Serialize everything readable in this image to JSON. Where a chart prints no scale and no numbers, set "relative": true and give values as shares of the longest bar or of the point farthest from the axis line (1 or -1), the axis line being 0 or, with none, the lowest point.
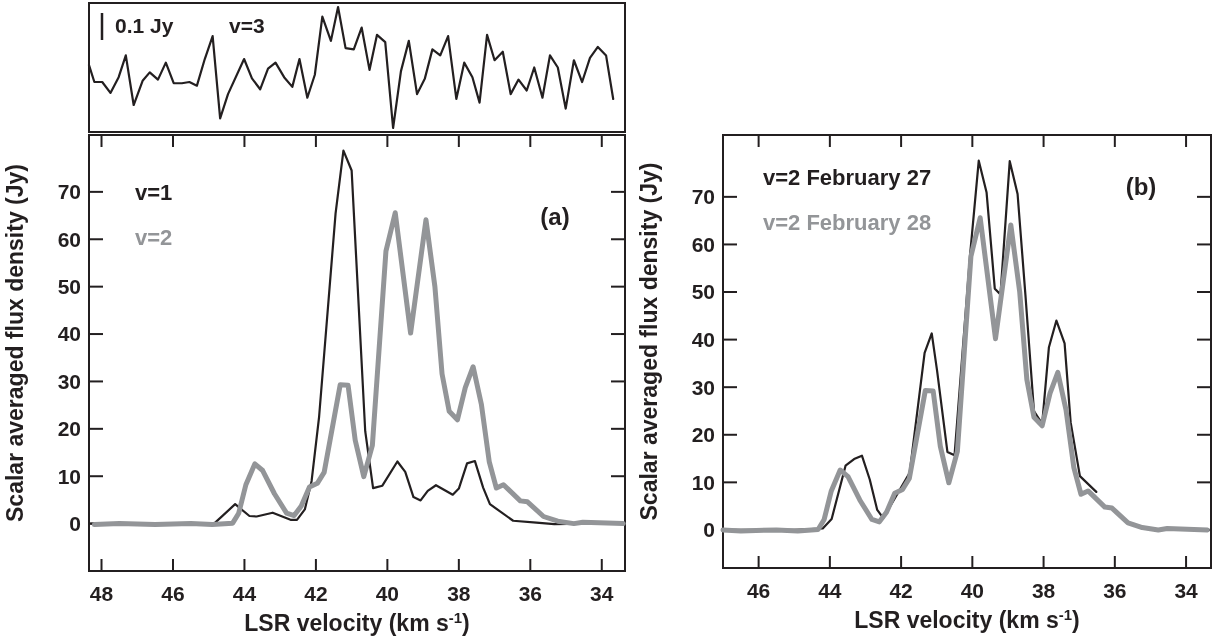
{
  "chart_data": [
    {
      "type": "line",
      "relative": true,
      "xlim": [
        48.35,
        33.35
      ],
      "tick_labels": false,
      "legend": "top left",
      "annotations": [
        "0.1 Jy"
      ],
      "series": [
        {
          "name": "v=3",
          "color": "#231f20",
          "x": [
            48.35,
            48.2,
            47.98,
            47.75,
            47.52,
            47.32,
            47.1,
            46.85,
            46.65,
            46.42,
            46.2,
            45.98,
            45.75,
            45.54,
            45.33,
            45.11,
            44.89,
            44.68,
            44.46,
            44.01,
            43.79,
            43.56,
            43.34,
            43.13,
            42.89,
            42.66,
            42.46,
            42.24,
            42.03,
            41.82,
            41.58,
            41.38,
            41.17,
            40.94,
            40.72,
            40.5,
            40.29,
            40.06,
            39.84,
            39.62,
            39.4,
            39.17,
            38.95,
            38.74,
            38.52,
            38.3,
            38.07,
            37.85,
            37.62,
            37.42,
            37.21,
            37.0,
            36.77,
            36.55,
            36.33,
            36.1,
            35.89,
            35.66,
            35.45,
            35.23,
            35.01,
            34.78,
            34.55,
            34.33,
            34.11,
            33.88,
            33.68
          ],
          "values": [
            0.52,
            0.38,
            0.38,
            0.29,
            0.42,
            0.6,
            0.19,
            0.39,
            0.46,
            0.4,
            0.54,
            0.37,
            0.37,
            0.38,
            0.35,
            0.57,
            0.76,
            0.08,
            0.28,
            0.57,
            0.41,
            0.32,
            0.49,
            0.54,
            0.42,
            0.34,
            0.57,
            0.25,
            0.44,
            0.92,
            0.72,
            1.0,
            0.66,
            0.65,
            0.83,
            0.48,
            0.77,
            0.71,
            0,
            0.47,
            0.72,
            0.28,
            0.41,
            0.65,
            0.6,
            0.76,
            0.24,
            0.54,
            0.42,
            0.21,
            0.77,
            0.56,
            0.63,
            0.28,
            0.4,
            0.31,
            0.5,
            0.25,
            0.6,
            0.5,
            0.16,
            0.56,
            0.38,
            0.58,
            0.67,
            0.6,
            0.24
          ]
        }
      ]
    },
    {
      "type": "line",
      "xlim": [
        48.35,
        33.35
      ],
      "ylim": [
        -10,
        82
      ],
      "xticks": [
        48,
        46,
        44,
        42,
        40,
        38,
        36,
        34
      ],
      "yticks": [
        0,
        10,
        20,
        30,
        40,
        50,
        60,
        70
      ],
      "xlabel": "LSR velocity (km s$^{-1}$)",
      "ylabel": "Scalar averaged flux density (Jy)",
      "legend": "top left",
      "annotations": [
        "(a)"
      ],
      "series": [
        {
          "name": "v=1",
          "color": "#231f20",
          "x": [
            48.3,
            46.5,
            44.85,
            44.26,
            43.86,
            43.66,
            43.21,
            42.71,
            42.53,
            42.31,
            42.12,
            41.91,
            41.45,
            41.23,
            41.0,
            40.62,
            40.4,
            40.14,
            39.72,
            39.5,
            39.27,
            39.07,
            38.87,
            38.64,
            38.17,
            38.0,
            37.77,
            37.55,
            37.32,
            37.13,
            36.48,
            35.83,
            35.33,
            34.5,
            33.4
          ],
          "values": [
            0,
            0,
            0,
            4.1,
            1.6,
            1.5,
            2.3,
            0.8,
            0.8,
            3.0,
            9.0,
            22.6,
            65.4,
            78.7,
            74.5,
            19.5,
            7.5,
            8.0,
            13.1,
            10.9,
            5.6,
            4.9,
            6.9,
            8.1,
            6.1,
            7.4,
            12.7,
            13.2,
            7.6,
            4.1,
            0.6,
            0.2,
            -0.1,
            0,
            0
          ]
        },
        {
          "name": "v=2",
          "color": "#939598",
          "x": [
            48.2,
            47.5,
            46.5,
            45.5,
            44.9,
            44.33,
            44.16,
            43.96,
            43.71,
            43.49,
            43.16,
            42.82,
            42.61,
            42.41,
            42.18,
            41.96,
            41.77,
            41.32,
            41.1,
            40.9,
            40.66,
            40.42,
            40.04,
            39.78,
            39.35,
            38.92,
            38.67,
            38.47,
            38.27,
            38.04,
            37.82,
            37.6,
            37.37,
            37.15,
            36.95,
            36.75,
            36.28,
            36.08,
            35.63,
            35.23,
            34.78,
            34.53,
            33.4
          ],
          "values": [
            -0.2,
            0,
            -0.2,
            0,
            -0.2,
            0.1,
            2.2,
            8.2,
            12.6,
            11.2,
            6.3,
            2.2,
            1.7,
            3.7,
            7.7,
            8.5,
            10.8,
            29.3,
            29.2,
            17.6,
            9.9,
            16.5,
            57.5,
            65.6,
            40.2,
            64.1,
            50,
            31.6,
            23.7,
            21.9,
            28.7,
            33.1,
            25.2,
            13.1,
            7.5,
            8.2,
            4.8,
            4.6,
            1.5,
            0.5,
            0,
            0.3,
            0
          ]
        }
      ]
    },
    {
      "type": "line",
      "xlim": [
        47.0,
        33.3
      ],
      "ylim": [
        -8,
        83
      ],
      "xticks": [
        46,
        44,
        42,
        40,
        38,
        36,
        34
      ],
      "yticks": [
        0,
        10,
        20,
        30,
        40,
        50,
        60,
        70
      ],
      "xlabel": "LSR velocity (km s$^{-1}$)",
      "ylabel": "Scalar averaged flux density (Jy)",
      "legend": "top left",
      "annotations": [
        "(b)"
      ],
      "series": [
        {
          "name": "v=2 February 27",
          "color": "#231f20",
          "x": [
            47.0,
            46.0,
            45.0,
            44.2,
            43.95,
            43.56,
            43.32,
            43.1,
            42.88,
            42.67,
            42.5,
            41.76,
            41.34,
            41.14,
            40.99,
            40.7,
            40.5,
            40.06,
            39.82,
            39.6,
            39.37,
            39.21,
            38.95,
            38.73,
            38.51,
            38.27,
            38.04,
            37.85,
            37.64,
            37.41,
            37.24,
            36.98,
            36.52
          ],
          "values": [
            0,
            0,
            0,
            0.3,
            2.3,
            13.5,
            14.9,
            15.6,
            10.6,
            4.2,
            2.5,
            12.0,
            37.2,
            41.3,
            33.5,
            16.4,
            15.7,
            58.1,
            77.6,
            70.9,
            50.7,
            49.5,
            77.5,
            70.6,
            49.4,
            25.0,
            22.3,
            38.4,
            44.0,
            39.2,
            22.6,
            11.3,
            8.0
          ]
        },
        {
          "name": "v=2 February 28",
          "color": "#939598",
          "x": [
            47.0,
            46.5,
            45.5,
            44.9,
            44.33,
            44.16,
            43.96,
            43.71,
            43.49,
            43.16,
            42.82,
            42.61,
            42.41,
            42.18,
            41.96,
            41.77,
            41.32,
            41.1,
            40.9,
            40.66,
            40.42,
            40.04,
            39.78,
            39.35,
            38.92,
            38.67,
            38.47,
            38.27,
            38.04,
            37.82,
            37.6,
            37.37,
            37.15,
            36.95,
            36.75,
            36.28,
            36.08,
            35.63,
            35.23,
            34.78,
            34.53,
            33.4
          ],
          "values": [
            0,
            -0.2,
            0,
            -0.2,
            0.1,
            2.2,
            8.2,
            12.6,
            11.2,
            6.3,
            2.2,
            1.7,
            3.7,
            7.7,
            8.5,
            10.8,
            29.3,
            29.2,
            17.6,
            9.9,
            16.5,
            57.5,
            65.6,
            40.2,
            64.1,
            50,
            31.6,
            23.7,
            21.9,
            28.7,
            33.1,
            25.2,
            13.1,
            7.5,
            8.2,
            4.8,
            4.6,
            1.5,
            0.5,
            0,
            0.3,
            0
          ]
        }
      ]
    }
  ]
}
